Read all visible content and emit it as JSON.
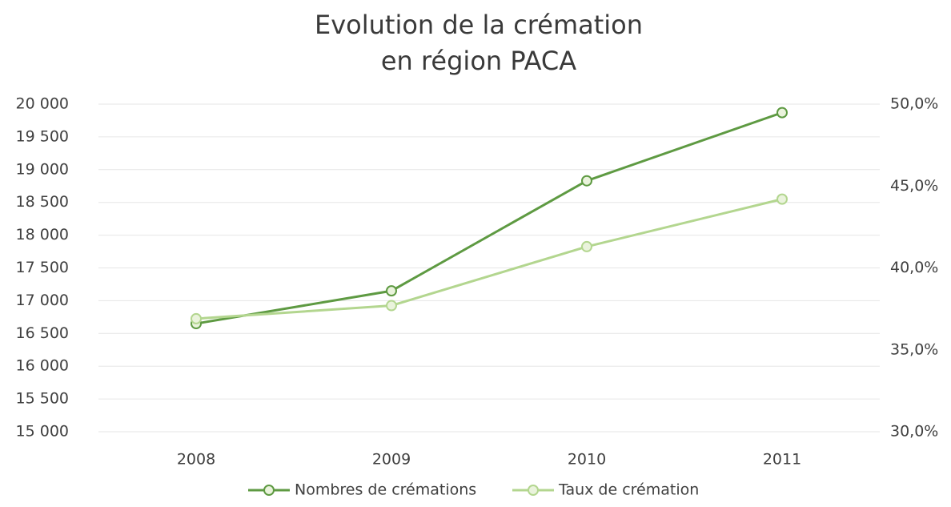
{
  "chart_data": {
    "type": "line",
    "title": [
      "Evolution de la crémation",
      "en région PACA"
    ],
    "categories": [
      "2008",
      "2009",
      "2010",
      "2011"
    ],
    "series": [
      {
        "name": "Nombres de crémations",
        "color": "#5e9a42",
        "values": [
          16650,
          17150,
          18830,
          19870
        ]
      },
      {
        "name": "Taux de crémation",
        "color": "#b3d68f",
        "axis": "y2",
        "values": [
          36.9,
          37.7,
          41.3,
          44.2
        ]
      }
    ],
    "ylim": [
      15000,
      20000
    ],
    "yticks": [
      {
        "value": 15000,
        "label": "15 000"
      },
      {
        "value": 15500,
        "label": "15 500"
      },
      {
        "value": 16000,
        "label": "16 000"
      },
      {
        "value": 16500,
        "label": "16 500"
      },
      {
        "value": 17000,
        "label": "17 000"
      },
      {
        "value": 17500,
        "label": "17 500"
      },
      {
        "value": 18000,
        "label": "18 000"
      },
      {
        "value": 18500,
        "label": "18 500"
      },
      {
        "value": 19000,
        "label": "19 000"
      },
      {
        "value": 19500,
        "label": "19 500"
      },
      {
        "value": 20000,
        "label": "20 000"
      }
    ],
    "y2lim": [
      30,
      50
    ],
    "y2ticks": [
      {
        "value": 30,
        "label": "30,0%"
      },
      {
        "value": 35,
        "label": "35,0%"
      },
      {
        "value": 40,
        "label": "40,0%"
      },
      {
        "value": 45,
        "label": "45,0%"
      },
      {
        "value": 50,
        "label": "50,0%"
      }
    ],
    "grid": true,
    "legend": "bottom"
  }
}
